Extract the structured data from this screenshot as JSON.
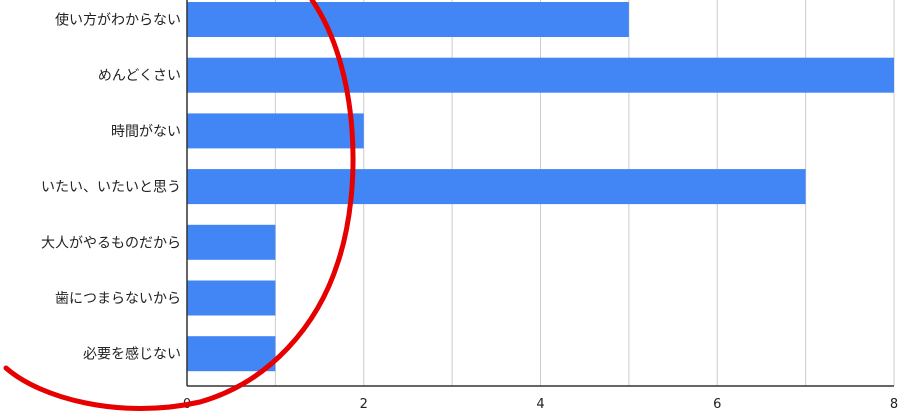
{
  "chart_data": {
    "type": "bar",
    "orientation": "horizontal",
    "categories": [
      "使い方がわからない",
      "めんどくさい",
      "時間がない",
      "いたい、いたいと思う",
      "大人がやるものだから",
      "歯につまらないから",
      "必要を感じない"
    ],
    "values": [
      5,
      8,
      2,
      7,
      1,
      1,
      1
    ],
    "xlim": [
      0,
      8
    ],
    "xticks": [
      "0",
      "2",
      "4",
      "6",
      "8"
    ],
    "grid": true,
    "legend": "none",
    "title": "",
    "xlabel": "",
    "ylabel": "",
    "colors": {
      "bar": "#4285f4",
      "grid": "#cccccc",
      "axis": "#333333",
      "annotation_circle": "#e60000"
    }
  }
}
